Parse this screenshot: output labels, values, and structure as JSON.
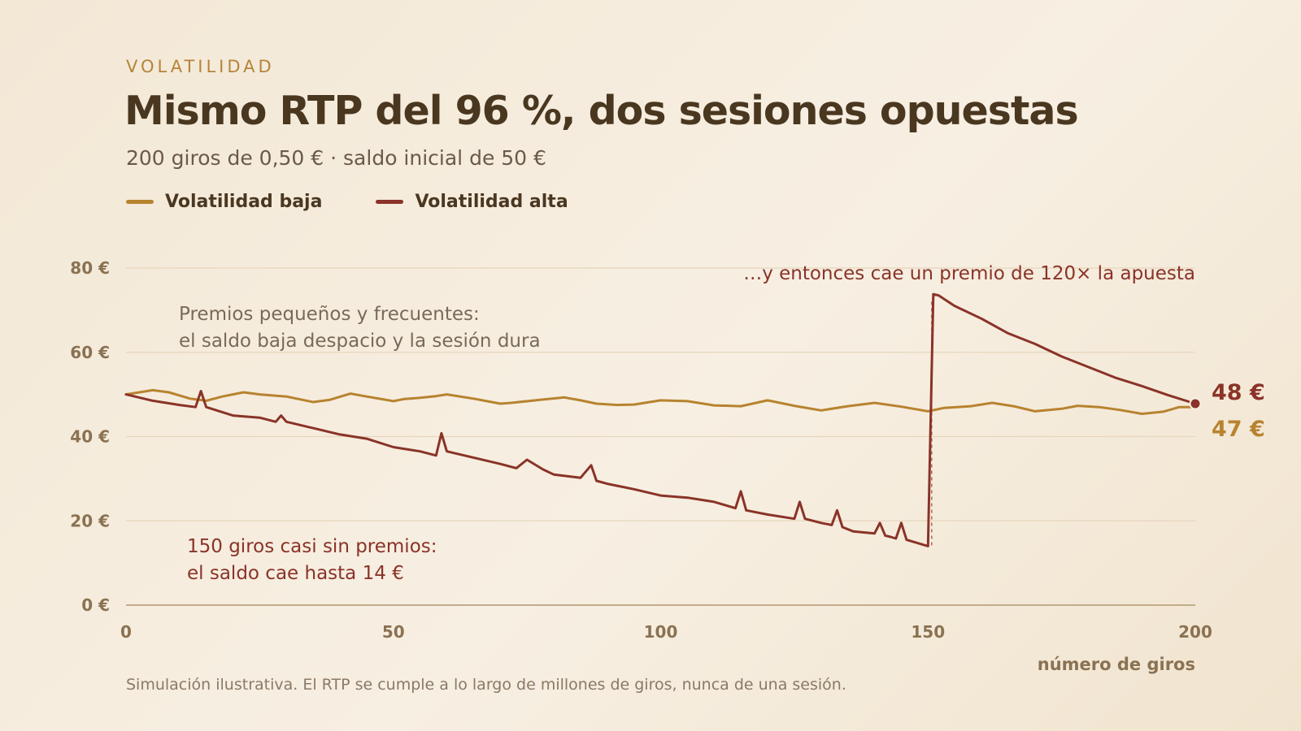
{
  "header": {
    "kicker": "VOLATILIDAD",
    "title": "Mismo RTP del 96 %, dos sesiones opuestas",
    "subtitle": "200 giros de 0,50 € · saldo inicial de 50 €"
  },
  "footnote": "Simulación ilustrativa. El RTP se cumple a lo largo de millones de giros, nunca de una sesión.",
  "colors": {
    "low": "#b7832f",
    "high": "#8a3328",
    "grid": "#e6d6bc",
    "axis": "#c2ad8b"
  },
  "chart_data": {
    "type": "line",
    "xlabel": "número de giros",
    "ylabel": "",
    "xlim": [
      0,
      200
    ],
    "ylim": [
      0,
      80
    ],
    "x_ticks": [
      0,
      50,
      100,
      150,
      200
    ],
    "x_tick_labels": [
      "0",
      "50",
      "100",
      "150",
      "200"
    ],
    "y_ticks": [
      0,
      20,
      40,
      60,
      80
    ],
    "y_tick_labels": [
      "0 €",
      "20 €",
      "40 €",
      "60 €",
      "80 €"
    ],
    "grid": true,
    "legend_position": "top-left",
    "series": [
      {
        "key": "low",
        "name": "Volatilidad baja",
        "x": [
          0,
          5,
          8,
          12,
          15,
          18,
          22,
          25,
          30,
          35,
          38,
          42,
          45,
          50,
          52,
          55,
          58,
          60,
          65,
          70,
          72,
          78,
          82,
          85,
          88,
          92,
          95,
          100,
          105,
          110,
          115,
          120,
          125,
          130,
          135,
          140,
          145,
          150,
          153,
          158,
          162,
          166,
          170,
          175,
          178,
          182,
          186,
          190,
          194,
          197,
          200
        ],
        "y": [
          50,
          51,
          50.5,
          49,
          48.5,
          49.5,
          50.5,
          50,
          49.5,
          48.2,
          48.7,
          50.2,
          49.5,
          48.4,
          48.9,
          49.2,
          49.6,
          50,
          49,
          47.8,
          48,
          48.8,
          49.3,
          48.6,
          47.8,
          47.5,
          47.6,
          48.6,
          48.4,
          47.4,
          47.2,
          48.6,
          47.3,
          46.2,
          47.2,
          48,
          47.1,
          46,
          46.8,
          47.2,
          48,
          47.2,
          46,
          46.6,
          47.3,
          47,
          46.3,
          45.4,
          45.9,
          47,
          47
        ]
      },
      {
        "key": "high",
        "name": "Volatilidad alta",
        "x": [
          0,
          5,
          10,
          13,
          14,
          15,
          20,
          25,
          28,
          29,
          30,
          35,
          40,
          45,
          50,
          55,
          58,
          59,
          60,
          65,
          70,
          73,
          75,
          78,
          80,
          85,
          87,
          88,
          90,
          95,
          100,
          105,
          110,
          114,
          115,
          116,
          120,
          125,
          126,
          127,
          130,
          132,
          133,
          134,
          136,
          140,
          141,
          142,
          143,
          144,
          145,
          146,
          150,
          151,
          152,
          155,
          160,
          165,
          170,
          175,
          180,
          185,
          190,
          195,
          200
        ],
        "y": [
          50,
          48.5,
          47.5,
          47,
          50.8,
          47,
          45,
          44.5,
          43.5,
          45,
          43.5,
          42,
          40.5,
          39.5,
          37.5,
          36.5,
          35.5,
          40.8,
          36.5,
          35,
          33.5,
          32.5,
          34.5,
          32.2,
          31,
          30.2,
          33.2,
          29.5,
          28.8,
          27.5,
          26,
          25.5,
          24.5,
          23,
          27,
          22.5,
          21.5,
          20.5,
          24.5,
          20.5,
          19.5,
          19,
          22.5,
          18.5,
          17.5,
          17,
          19.5,
          16.5,
          16.2,
          15.8,
          19.5,
          15.5,
          14,
          73.8,
          73.5,
          71,
          68,
          64.5,
          62,
          59,
          56.5,
          54,
          52,
          49.8,
          47.8
        ]
      }
    ],
    "annotations": [
      {
        "key": "low_note",
        "lines": [
          "Premios pequeños y frecuentes:",
          "el saldo baja despacio y la sesión dura"
        ]
      },
      {
        "key": "high_note",
        "lines": [
          "150 giros casi sin premios:",
          "el saldo cae hasta 14 €"
        ]
      },
      {
        "key": "jackpot_note",
        "lines": [
          "…y entonces cae un premio de 120× la apuesta"
        ],
        "x": 151
      }
    ],
    "end_labels": [
      {
        "key": "high",
        "text": "48 €",
        "value": 48
      },
      {
        "key": "low",
        "text": "47 €",
        "value": 47
      }
    ]
  }
}
